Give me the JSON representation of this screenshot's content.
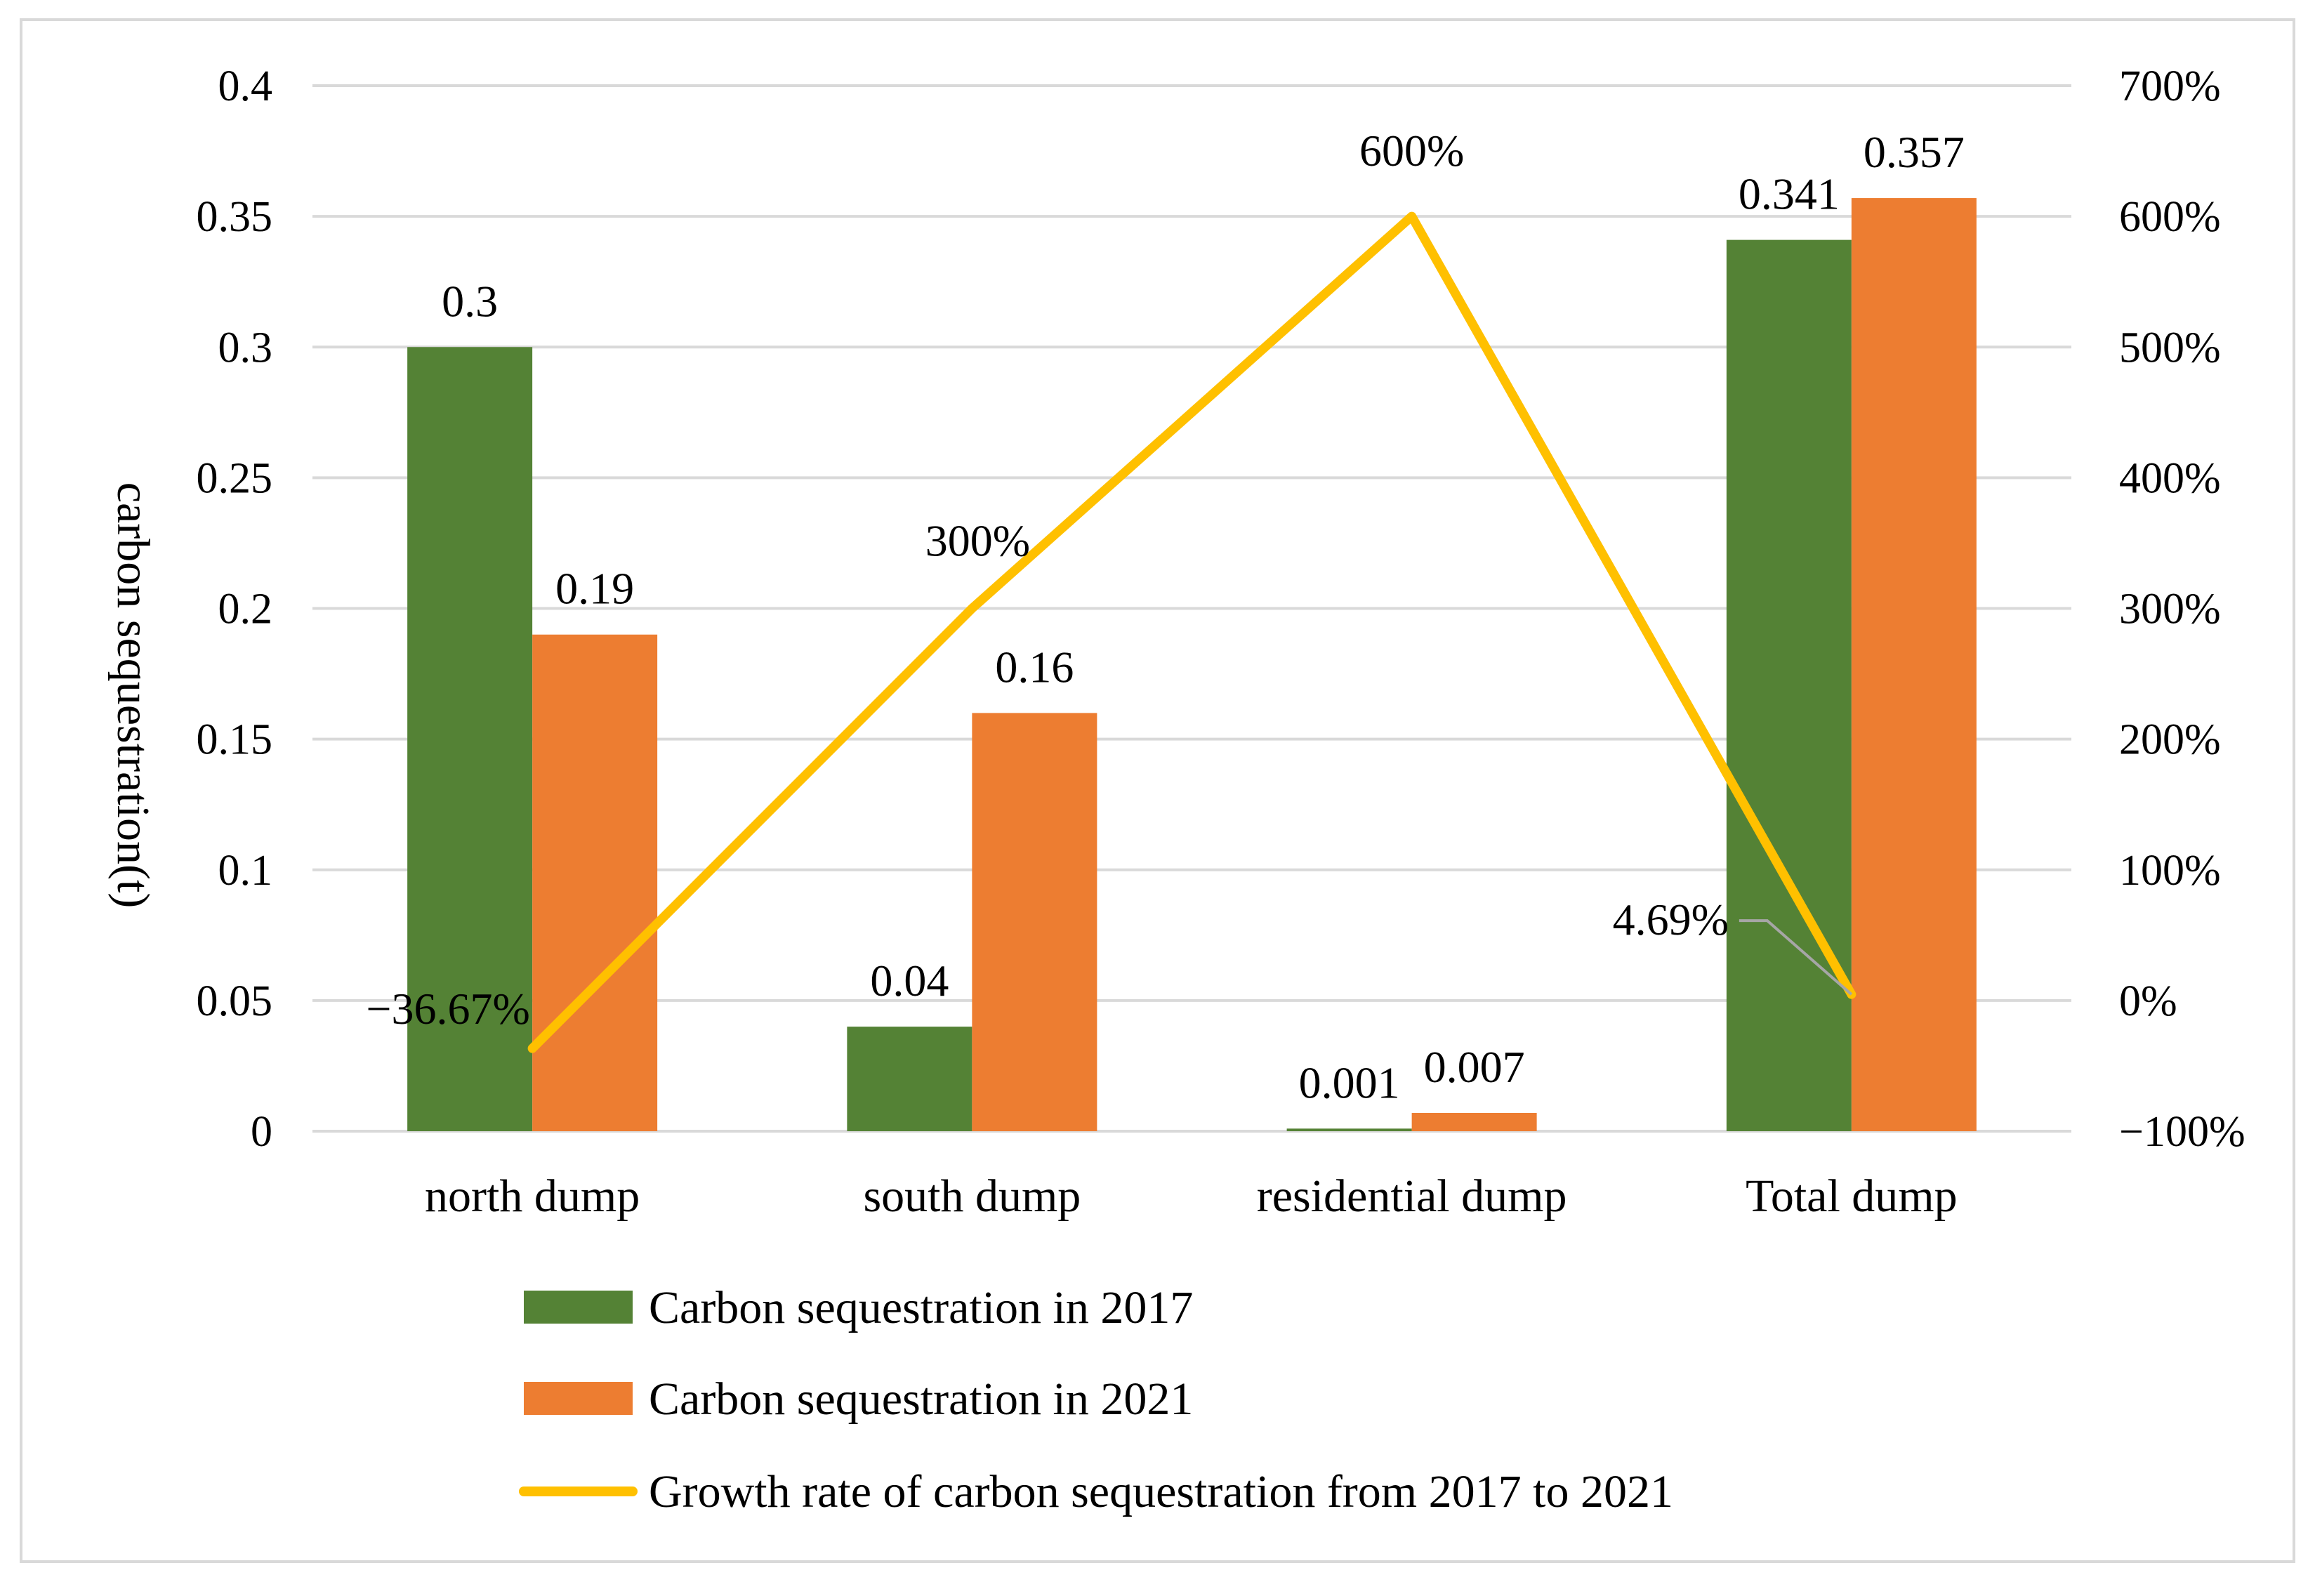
{
  "chart_data": {
    "type": "bar",
    "categories": [
      "north dump",
      "south dump",
      "residential dump",
      "Total dump"
    ],
    "series": [
      {
        "name": "Carbon sequestration in 2017",
        "type": "bar",
        "axis": "left",
        "color": "#548235",
        "values": [
          0.3,
          0.04,
          0.001,
          0.341
        ],
        "labels": [
          "0.3",
          "0.04",
          "0.001",
          "0.341"
        ]
      },
      {
        "name": "Carbon sequestration in 2021",
        "type": "bar",
        "axis": "left",
        "color": "#ED7D31",
        "values": [
          0.19,
          0.16,
          0.007,
          0.357
        ],
        "labels": [
          "0.19",
          "0.16",
          "0.007",
          "0.357"
        ]
      },
      {
        "name": "Growth rate of carbon sequestration from 2017 to 2021",
        "type": "line",
        "axis": "right",
        "color": "#FFC000",
        "values": [
          -36.67,
          300,
          600,
          4.69
        ],
        "labels": [
          "−36.67%",
          "300%",
          "600%",
          "4.69%"
        ]
      }
    ],
    "ylabel": "carbon sequestration(t)",
    "ylim": [
      0,
      0.4
    ],
    "yticks": [
      "0",
      "0.05",
      "0.1",
      "0.15",
      "0.2",
      "0.25",
      "0.3",
      "0.35",
      "0.4"
    ],
    "y2lim": [
      -100,
      700
    ],
    "y2ticks": [
      "−100%",
      "0%",
      "100%",
      "200%",
      "300%",
      "400%",
      "500%",
      "600%",
      "700%"
    ],
    "grid": true,
    "legend_position": "bottom"
  }
}
